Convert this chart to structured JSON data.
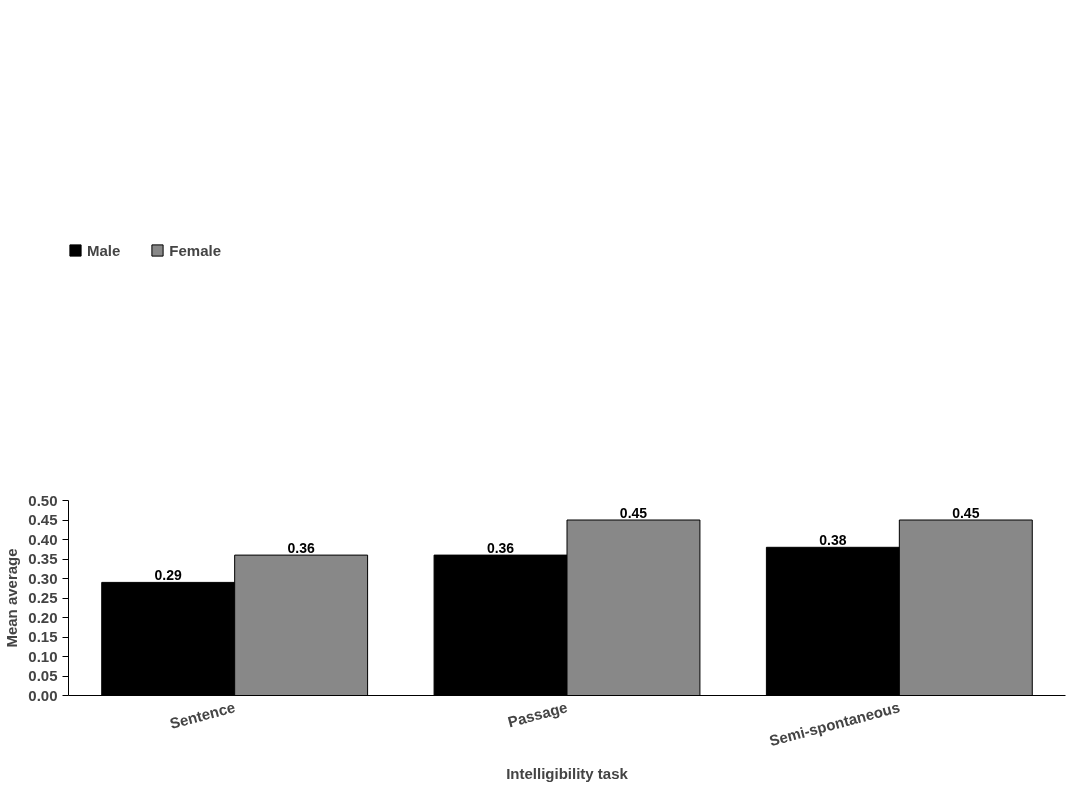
{
  "chart_data": {
    "type": "bar",
    "xlabel": "Intelligibility task",
    "ylabel": "Mean average",
    "categories": [
      "Sentence",
      "Passage",
      "Semi-spontaneous"
    ],
    "series": [
      {
        "name": "Male",
        "color": "#000000",
        "values": [
          0.29,
          0.36,
          0.38
        ]
      },
      {
        "name": "Female",
        "color": "#888888",
        "values": [
          0.36,
          0.45,
          0.45
        ]
      }
    ],
    "ylim": [
      0,
      0.5
    ],
    "yticks": [
      {
        "value": 0,
        "label": "0.00"
      },
      {
        "value": 0.05,
        "label": "0.05"
      },
      {
        "value": 0.1,
        "label": "0.10"
      },
      {
        "value": 0.15,
        "label": "0.15"
      },
      {
        "value": 0.2,
        "label": "0.20"
      },
      {
        "value": 0.25,
        "label": "0.25"
      },
      {
        "value": 0.3,
        "label": "0.30"
      },
      {
        "value": 0.35,
        "label": "0.35"
      },
      {
        "value": 0.4,
        "label": "0.40"
      },
      {
        "value": 0.45,
        "label": "0.45"
      },
      {
        "value": 0.5,
        "label": "0.50"
      }
    ],
    "data_labels": true,
    "grid": false,
    "legend": "top left"
  }
}
